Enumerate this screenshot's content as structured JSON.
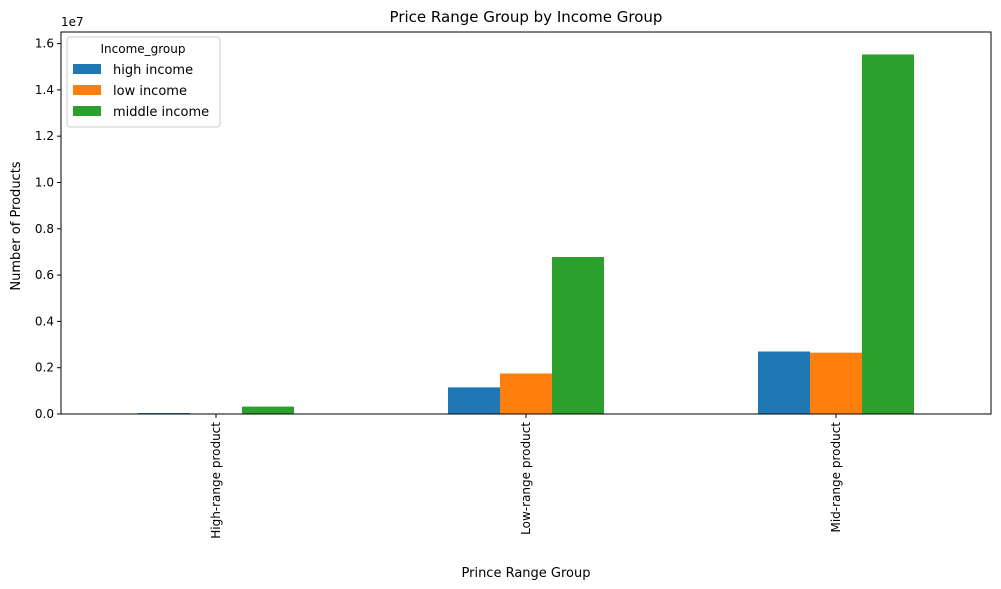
{
  "chart_data": {
    "type": "bar",
    "title": "Price Range Group by Income Group",
    "xlabel": "Prince Range Group",
    "ylabel": "Number of Products",
    "scale_label": "1e7",
    "categories": [
      "High-range product",
      "Low-range product",
      "Mid-range product"
    ],
    "series": [
      {
        "name": "high income",
        "color": "#1f77b4",
        "values": [
          40000,
          1150000,
          2700000
        ]
      },
      {
        "name": "low income",
        "color": "#ff7f0e",
        "values": [
          10000,
          1750000,
          2650000
        ]
      },
      {
        "name": "middle income",
        "color": "#2ca02c",
        "values": [
          320000,
          6780000,
          15530000
        ]
      }
    ],
    "ylim": [
      0,
      16500000
    ],
    "yticks": [
      0,
      2000000,
      4000000,
      6000000,
      8000000,
      10000000,
      12000000,
      14000000,
      16000000
    ],
    "ytick_labels": [
      "0.0",
      "0.2",
      "0.4",
      "0.6",
      "0.8",
      "1.0",
      "1.2",
      "1.4",
      "1.6"
    ],
    "legend": {
      "title": "Income_group",
      "placement": "top-left"
    },
    "grid": false
  }
}
